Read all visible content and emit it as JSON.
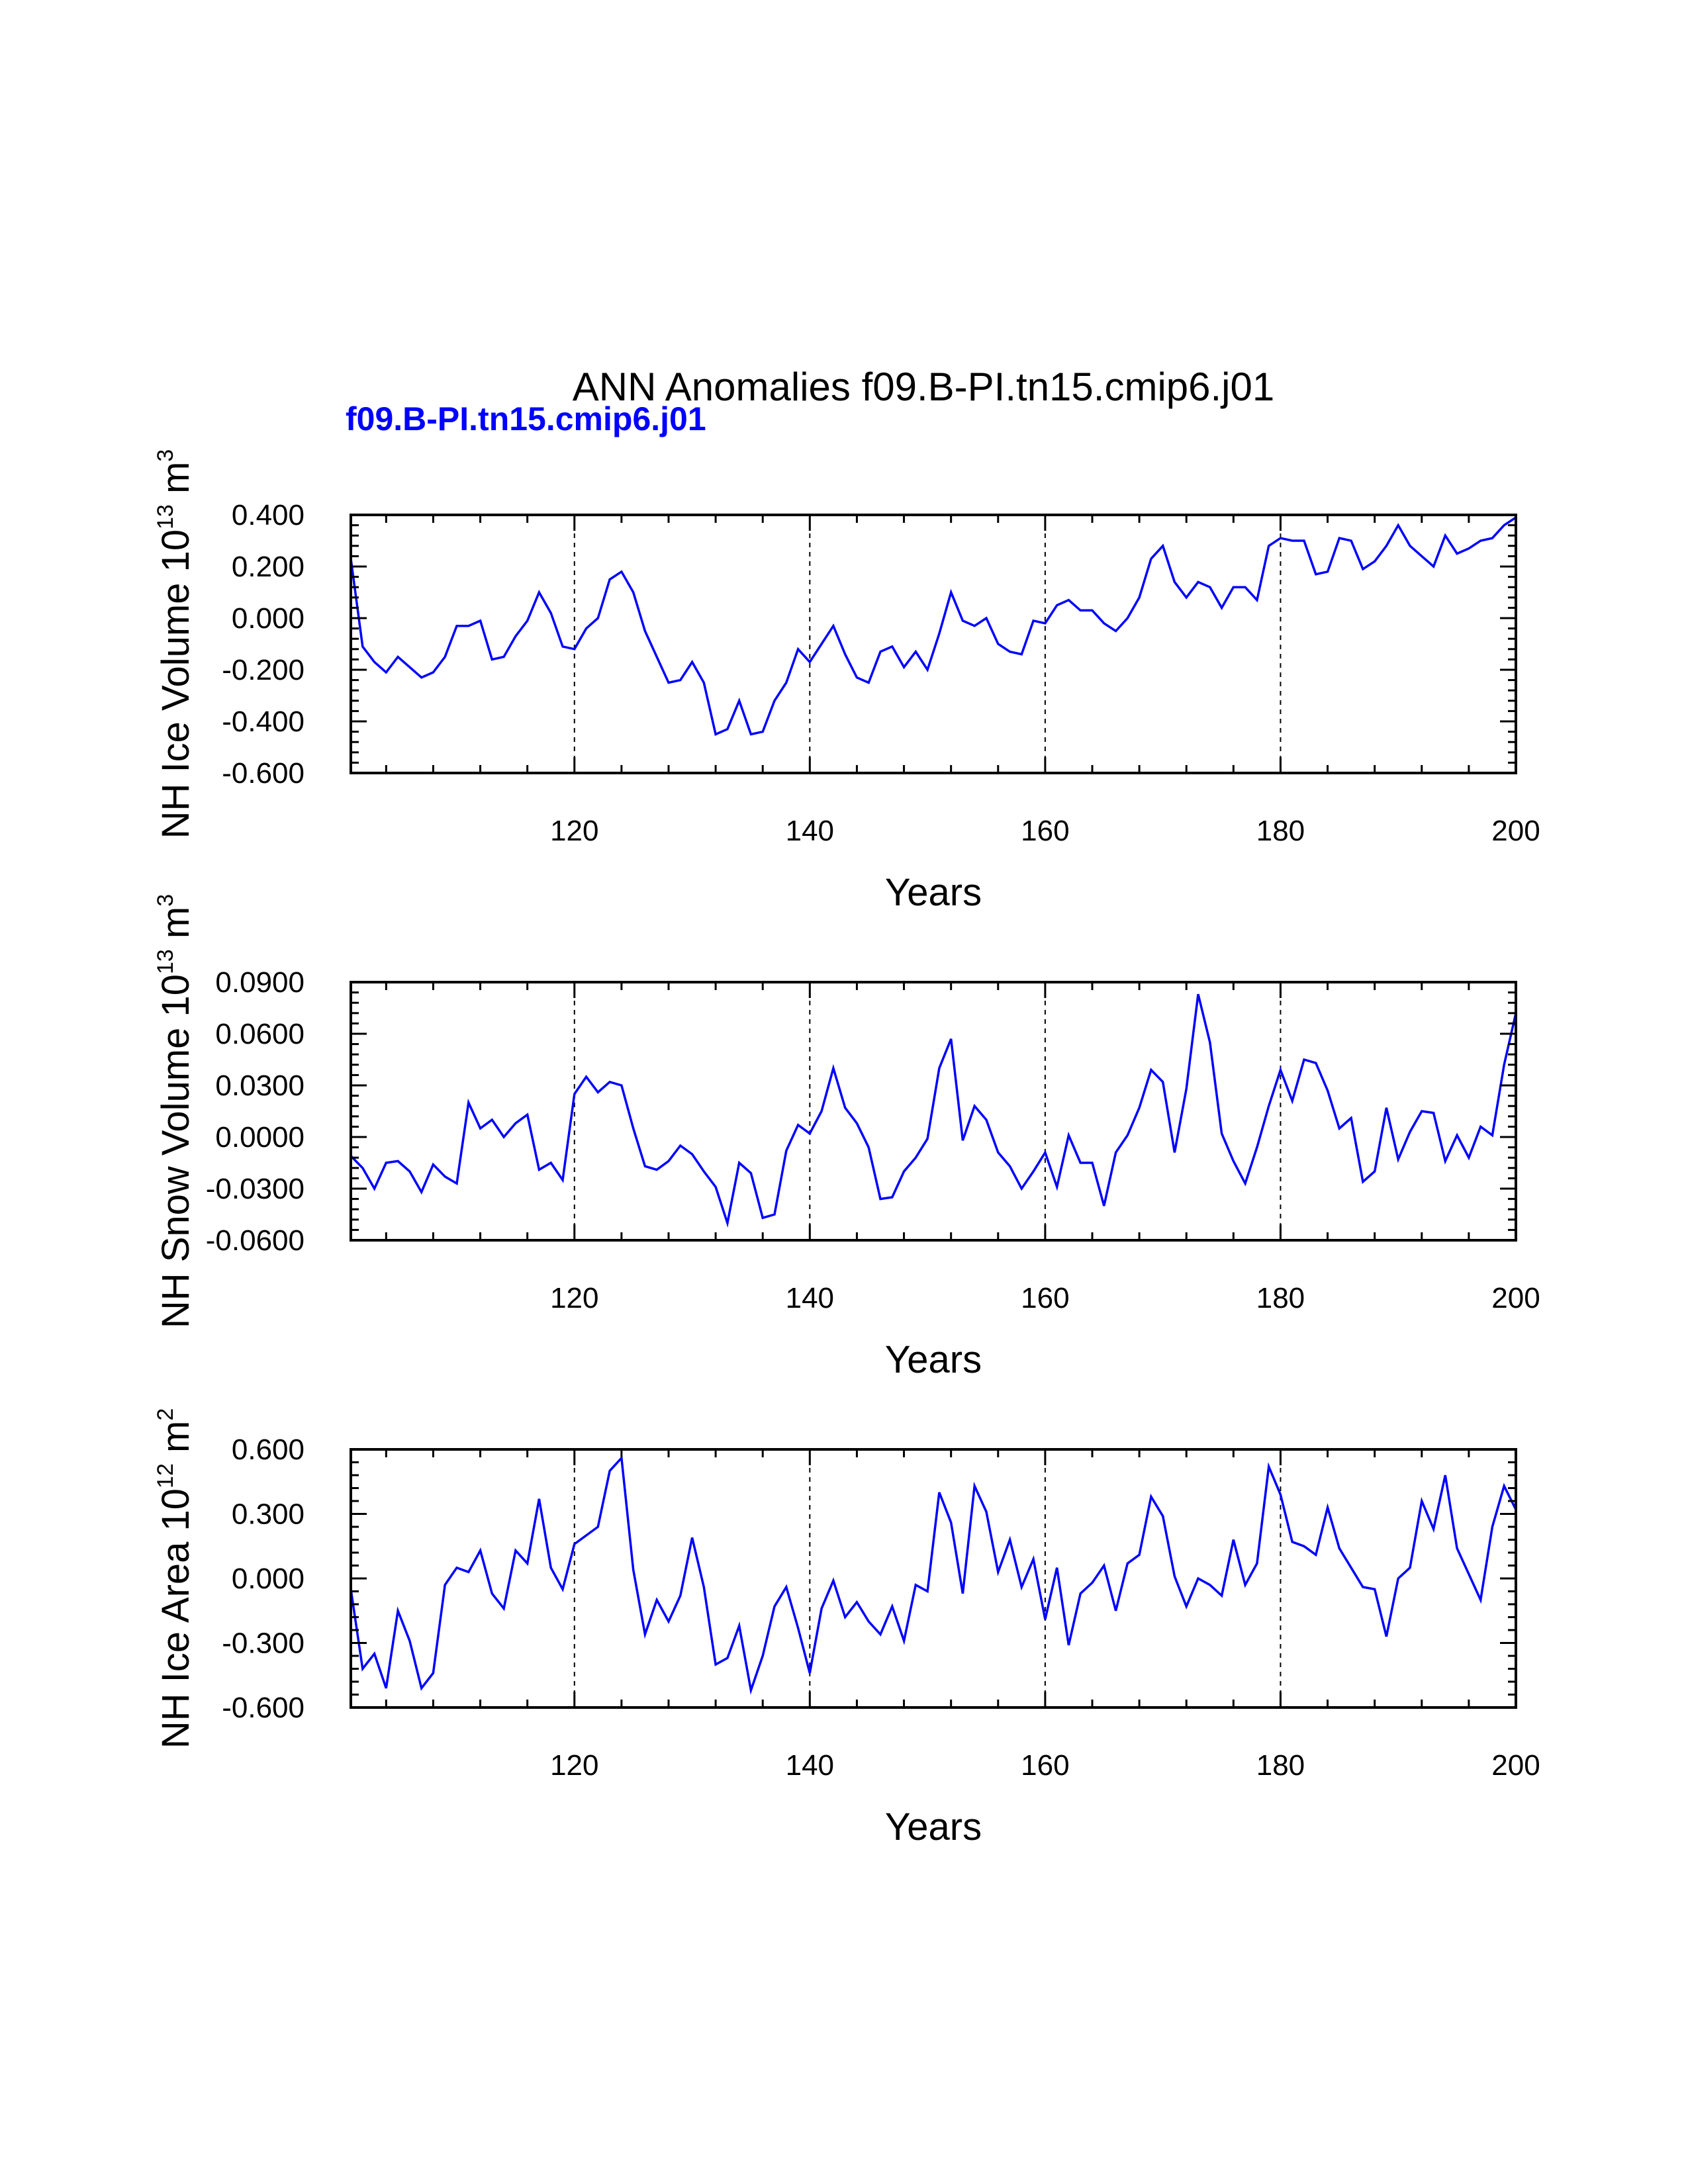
{
  "title": "ANN Anomalies f09.B-PI.tn15.cmip6.j01",
  "subtitle": "f09.B-PI.tn15.cmip6.j01",
  "colors": {
    "line": "#0000ff",
    "subtitle": "#0000ff",
    "axes": "#000000"
  },
  "chart_data": [
    {
      "type": "line",
      "title": "",
      "xlabel": "Years",
      "ylabel": "NH Ice Volume 10^13 m^3",
      "ylabel_parts": [
        "NH Ice Volume 10",
        "13",
        " m",
        "3"
      ],
      "xlim": [
        101,
        200
      ],
      "ylim": [
        -0.6,
        0.4
      ],
      "xticks": [
        120,
        140,
        160,
        180,
        200
      ],
      "xtick_labels": [
        "120",
        "140",
        "160",
        "180",
        "200"
      ],
      "yticks": [
        0.4,
        0.2,
        0.0,
        -0.2,
        -0.4,
        -0.6
      ],
      "ytick_labels": [
        "0.400",
        "0.200",
        "0.000",
        "-0.200",
        "-0.400",
        "-0.600"
      ],
      "grid": "dashed vertical lines at 120, 140, 160, 180",
      "series": [
        {
          "x_start": 101,
          "x_step": 1,
          "values": [
            0.23,
            -0.11,
            -0.17,
            -0.21,
            -0.15,
            -0.19,
            -0.23,
            -0.21,
            -0.15,
            -0.03,
            -0.03,
            -0.01,
            -0.16,
            -0.15,
            -0.07,
            -0.01,
            0.1,
            0.02,
            -0.11,
            -0.12,
            -0.04,
            0.0,
            0.15,
            0.18,
            0.1,
            -0.05,
            -0.15,
            -0.25,
            -0.24,
            -0.17,
            -0.25,
            -0.45,
            -0.43,
            -0.32,
            -0.45,
            -0.44,
            -0.32,
            -0.25,
            -0.12,
            -0.17,
            -0.1,
            -0.03,
            -0.14,
            -0.23,
            -0.25,
            -0.13,
            -0.11,
            -0.19,
            -0.13,
            -0.2,
            -0.06,
            0.1,
            -0.01,
            -0.03,
            0.0,
            -0.1,
            -0.13,
            -0.14,
            -0.01,
            -0.02,
            0.05,
            0.07,
            0.03,
            0.03,
            -0.02,
            -0.05,
            0.0,
            0.08,
            0.23,
            0.28,
            0.14,
            0.08,
            0.14,
            0.12,
            0.04,
            0.12,
            0.12,
            0.07,
            0.28,
            0.31,
            0.3,
            0.3,
            0.17,
            0.18,
            0.31,
            0.3,
            0.19,
            0.22,
            0.28,
            0.36,
            0.28,
            0.24,
            0.2,
            0.32,
            0.25,
            0.27,
            0.3,
            0.31,
            0.36,
            0.39
          ]
        }
      ]
    },
    {
      "type": "line",
      "title": "",
      "xlabel": "Years",
      "ylabel": "NH Snow Volume 10^13 m^3",
      "ylabel_parts": [
        "NH Snow Volume 10",
        "13",
        " m",
        "3"
      ],
      "xlim": [
        101,
        200
      ],
      "ylim": [
        -0.06,
        0.09
      ],
      "xticks": [
        120,
        140,
        160,
        180,
        200
      ],
      "xtick_labels": [
        "120",
        "140",
        "160",
        "180",
        "200"
      ],
      "yticks": [
        0.09,
        0.06,
        0.03,
        0.0,
        -0.03,
        -0.06
      ],
      "ytick_labels": [
        "0.0900",
        "0.0600",
        "0.0300",
        "0.0000",
        "-0.0300",
        "-0.0600"
      ],
      "grid": "dashed vertical lines at 120, 140, 160, 180",
      "series": [
        {
          "x_start": 101,
          "x_step": 1,
          "values": [
            -0.011,
            -0.018,
            -0.03,
            -0.015,
            -0.014,
            -0.02,
            -0.032,
            -0.016,
            -0.023,
            -0.027,
            0.02,
            0.005,
            0.01,
            0.0,
            0.008,
            0.013,
            -0.019,
            -0.015,
            -0.025,
            0.025,
            0.035,
            0.026,
            0.032,
            0.03,
            0.005,
            -0.017,
            -0.019,
            -0.014,
            -0.005,
            -0.01,
            -0.02,
            -0.029,
            -0.05,
            -0.015,
            -0.021,
            -0.047,
            -0.045,
            -0.008,
            0.007,
            0.002,
            0.015,
            0.04,
            0.017,
            0.008,
            -0.006,
            -0.036,
            -0.035,
            -0.02,
            -0.012,
            -0.001,
            0.04,
            0.057,
            -0.002,
            0.018,
            0.01,
            -0.009,
            -0.017,
            -0.03,
            -0.02,
            -0.009,
            -0.029,
            0.001,
            -0.015,
            -0.015,
            -0.04,
            -0.009,
            0.001,
            0.017,
            0.039,
            0.032,
            -0.009,
            0.028,
            0.083,
            0.055,
            0.002,
            -0.014,
            -0.027,
            -0.006,
            0.018,
            0.039,
            0.021,
            0.045,
            0.043,
            0.027,
            0.005,
            0.011,
            -0.026,
            -0.02,
            0.017,
            -0.013,
            0.003,
            0.015,
            0.014,
            -0.014,
            0.001,
            -0.012,
            0.006,
            0.001,
            0.042,
            0.072
          ]
        }
      ]
    },
    {
      "type": "line",
      "title": "",
      "xlabel": "Years",
      "ylabel": "NH Ice Area 10^12 m^2",
      "ylabel_parts": [
        "NH Ice Area 10",
        "12",
        " m",
        "2"
      ],
      "xlim": [
        101,
        200
      ],
      "ylim": [
        -0.6,
        0.6
      ],
      "xticks": [
        120,
        140,
        160,
        180,
        200
      ],
      "xtick_labels": [
        "120",
        "140",
        "160",
        "180",
        "200"
      ],
      "yticks": [
        0.6,
        0.3,
        0.0,
        -0.3,
        -0.6
      ],
      "ytick_labels": [
        "0.600",
        "0.300",
        "0.000",
        "-0.300",
        "-0.600"
      ],
      "grid": "dashed vertical lines at 120, 140, 160, 180",
      "series": [
        {
          "x_start": 101,
          "x_step": 1,
          "values": [
            -0.05,
            -0.42,
            -0.35,
            -0.51,
            -0.15,
            -0.29,
            -0.51,
            -0.44,
            -0.03,
            0.05,
            0.03,
            0.13,
            -0.07,
            -0.14,
            0.13,
            0.07,
            0.37,
            0.05,
            -0.05,
            0.16,
            0.2,
            0.24,
            0.5,
            0.56,
            0.04,
            -0.26,
            -0.1,
            -0.2,
            -0.08,
            0.19,
            -0.04,
            -0.4,
            -0.37,
            -0.22,
            -0.52,
            -0.36,
            -0.13,
            -0.04,
            -0.23,
            -0.44,
            -0.14,
            -0.01,
            -0.18,
            -0.11,
            -0.2,
            -0.26,
            -0.13,
            -0.29,
            -0.03,
            -0.06,
            0.4,
            0.26,
            -0.07,
            0.43,
            0.31,
            0.03,
            0.18,
            -0.04,
            0.09,
            -0.19,
            0.05,
            -0.31,
            -0.07,
            -0.02,
            0.06,
            -0.15,
            0.07,
            0.11,
            0.38,
            0.29,
            0.01,
            -0.13,
            0.0,
            -0.03,
            -0.08,
            0.18,
            -0.03,
            0.07,
            0.52,
            0.39,
            0.17,
            0.15,
            0.11,
            0.33,
            0.14,
            0.05,
            -0.04,
            -0.05,
            -0.27,
            0.0,
            0.05,
            0.36,
            0.23,
            0.48,
            0.14,
            0.02,
            -0.1,
            0.24,
            0.43,
            0.32
          ]
        }
      ]
    }
  ]
}
